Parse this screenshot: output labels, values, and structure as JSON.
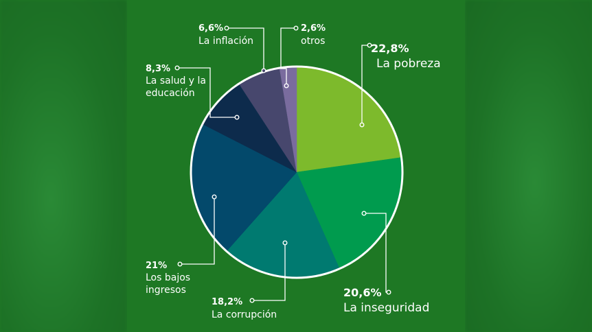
{
  "chart_data": {
    "type": "pie",
    "slices": [
      {
        "value": 22.8,
        "pct": "22,8%",
        "label": [
          "La pobreza"
        ],
        "color": "#7dba2c"
      },
      {
        "value": 20.6,
        "pct": "20,6%",
        "label": [
          "La inseguridad"
        ],
        "color": "#009b4e"
      },
      {
        "value": 18.2,
        "pct": "18,2%",
        "label": [
          "La corrupción"
        ],
        "color": "#007a70"
      },
      {
        "value": 21,
        "pct": "21%",
        "label": [
          "Los bajos",
          "ingresos"
        ],
        "color": "#03496b"
      },
      {
        "value": 8.3,
        "pct": "8,3%",
        "label": [
          "La salud y la",
          "educación"
        ],
        "color": "#0d2b4c"
      },
      {
        "value": 6.6,
        "pct": "6,6%",
        "label": [
          "La inflación"
        ],
        "color": "#47476d"
      },
      {
        "value": 2.6,
        "pct": "2,6%",
        "label": [
          "otros"
        ],
        "color": "#7a6c9e"
      }
    ],
    "title": "",
    "legend": "none"
  },
  "colors": {
    "background": "#1e7824",
    "outline": "#ffffff"
  }
}
